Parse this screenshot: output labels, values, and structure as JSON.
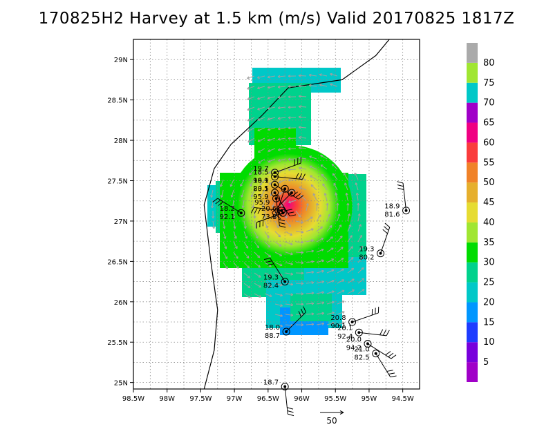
{
  "title": "170825H2 Harvey at 1.5 km (m/s) Valid 20170825 1817Z",
  "map": {
    "lon_range": [
      -98.5,
      -94.25
    ],
    "lat_range": [
      24.92,
      29.25
    ],
    "x_ticks": [
      {
        "lon": -98.5,
        "label": "98.5W"
      },
      {
        "lon": -98.0,
        "label": "98W"
      },
      {
        "lon": -97.5,
        "label": "97.5W"
      },
      {
        "lon": -97.0,
        "label": "97W"
      },
      {
        "lon": -96.5,
        "label": "96.5W"
      },
      {
        "lon": -96.0,
        "label": "96W"
      },
      {
        "lon": -95.5,
        "label": "95.5W"
      },
      {
        "lon": -95.0,
        "label": "95W"
      },
      {
        "lon": -94.5,
        "label": "94.5W"
      }
    ],
    "y_ticks": [
      {
        "lat": 25.0,
        "label": "25N"
      },
      {
        "lat": 25.5,
        "label": "25.5N"
      },
      {
        "lat": 26.0,
        "label": "26N"
      },
      {
        "lat": 26.5,
        "label": "26.5N"
      },
      {
        "lat": 27.0,
        "label": "27N"
      },
      {
        "lat": 27.5,
        "label": "27.5N"
      },
      {
        "lat": 28.0,
        "label": "28N"
      },
      {
        "lat": 28.5,
        "label": "28.5N"
      },
      {
        "lat": 29.0,
        "label": "29N"
      }
    ],
    "grid": "dotted",
    "storm_center": {
      "lon": -96.05,
      "lat": 27.15
    },
    "coastline": [
      [
        -97.45,
        24.92
      ],
      [
        -97.3,
        25.4
      ],
      [
        -97.25,
        25.9
      ],
      [
        -97.35,
        26.5
      ],
      [
        -97.45,
        27.2
      ],
      [
        -97.3,
        27.65
      ],
      [
        -97.05,
        27.95
      ],
      [
        -96.6,
        28.3
      ],
      [
        -96.2,
        28.65
      ],
      [
        -95.4,
        28.75
      ],
      [
        -94.9,
        29.05
      ],
      [
        -94.7,
        29.25
      ]
    ],
    "arrow_scale": {
      "label": "50",
      "value_ms": 50
    }
  },
  "colorbar": {
    "levels": [
      {
        "label": "",
        "color": "#a000c8"
      },
      {
        "label": "5",
        "color": "#7800dc"
      },
      {
        "label": "10",
        "color": "#1e3cff"
      },
      {
        "label": "15",
        "color": "#0096ff"
      },
      {
        "label": "20",
        "color": "#00c8c8"
      },
      {
        "label": "25",
        "color": "#00d28c"
      },
      {
        "label": "30",
        "color": "#00dc00"
      },
      {
        "label": "35",
        "color": "#a0e632"
      },
      {
        "label": "40",
        "color": "#e6dc32"
      },
      {
        "label": "45",
        "color": "#e6af2d"
      },
      {
        "label": "50",
        "color": "#f08228"
      },
      {
        "label": "55",
        "color": "#fa3c3c"
      },
      {
        "label": "60",
        "color": "#f00082"
      },
      {
        "label": "65",
        "color": "#a000c8"
      },
      {
        "label": "70",
        "color": "#00c8c8"
      },
      {
        "label": "75",
        "color": "#a0e632"
      },
      {
        "label": "80",
        "color": "#aaaaaa"
      }
    ]
  },
  "stations": [
    {
      "lon": -96.4,
      "lat": 27.6,
      "top": "19.7",
      "bottom": ""
    },
    {
      "lon": -96.4,
      "lat": 27.55,
      "top": "18.5",
      "bottom": "96.9"
    },
    {
      "lon": -96.4,
      "lat": 27.45,
      "top": "19.1",
      "bottom": "83.1"
    },
    {
      "lon": -96.4,
      "lat": 27.35,
      "top": "20.5",
      "bottom": "95.9"
    },
    {
      "lon": -96.38,
      "lat": 27.28,
      "top": "",
      "bottom": "95.9"
    },
    {
      "lon": -96.25,
      "lat": 27.4,
      "top": "",
      "bottom": ""
    },
    {
      "lon": -96.15,
      "lat": 27.35,
      "top": "",
      "bottom": ""
    },
    {
      "lon": -96.28,
      "lat": 27.1,
      "top": "20.6",
      "bottom": "73.8"
    },
    {
      "lon": -96.3,
      "lat": 27.13,
      "top": "",
      "bottom": ""
    },
    {
      "lon": -96.9,
      "lat": 27.1,
      "top": "18.2",
      "bottom": "92.1"
    },
    {
      "lon": -96.25,
      "lat": 26.25,
      "top": "19.3",
      "bottom": "82.4"
    },
    {
      "lon": -94.45,
      "lat": 27.13,
      "top": "18.9",
      "bottom": "81.6"
    },
    {
      "lon": -94.83,
      "lat": 26.6,
      "top": "19.3",
      "bottom": "80.2"
    },
    {
      "lon": -96.23,
      "lat": 25.63,
      "top": "18.0",
      "bottom": "88.7"
    },
    {
      "lon": -95.25,
      "lat": 25.75,
      "top": "20.8",
      "bottom": "90.1"
    },
    {
      "lon": -95.15,
      "lat": 25.62,
      "top": "20.1",
      "bottom": "92.4"
    },
    {
      "lon": -95.02,
      "lat": 25.48,
      "top": "20.0",
      "bottom": "94.2"
    },
    {
      "lon": -94.9,
      "lat": 25.36,
      "top": "21.0",
      "bottom": "82.5"
    },
    {
      "lon": -96.25,
      "lat": 24.95,
      "top": "18.7",
      "bottom": ""
    }
  ]
}
